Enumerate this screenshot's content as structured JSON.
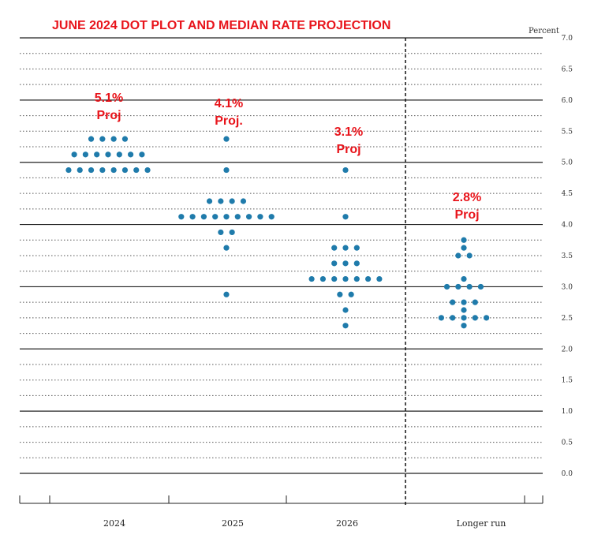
{
  "chart_data": {
    "type": "scatter",
    "title": "JUNE 2024 DOT PLOT AND MEDIAN RATE PROJECTION",
    "ylabel": "Percent",
    "ylim": [
      0,
      7
    ],
    "yticks": [
      "0.0",
      "0.5",
      "1.0",
      "1.5",
      "2.0",
      "2.5",
      "3.0",
      "3.5",
      "4.0",
      "4.5",
      "5.0",
      "5.5",
      "6.0",
      "6.5",
      "7.0"
    ],
    "grid": true,
    "categories": [
      "2024",
      "2025",
      "2026",
      "Longer run"
    ],
    "dot_color": "#1f7bab",
    "annotation_color": "#e8141b",
    "columns": [
      {
        "category": "2024",
        "rows": [
          {
            "rate": 5.375,
            "count": 4
          },
          {
            "rate": 5.125,
            "count": 7
          },
          {
            "rate": 4.875,
            "count": 8
          }
        ],
        "annotation": {
          "value": "5.1%",
          "label": "Proj"
        }
      },
      {
        "category": "2025",
        "rows": [
          {
            "rate": 5.375,
            "count": 1
          },
          {
            "rate": 4.875,
            "count": 1
          },
          {
            "rate": 4.375,
            "count": 4
          },
          {
            "rate": 4.125,
            "count": 9
          },
          {
            "rate": 3.875,
            "count": 2
          },
          {
            "rate": 3.625,
            "count": 1
          },
          {
            "rate": 2.875,
            "count": 1
          }
        ],
        "annotation": {
          "value": "4.1%",
          "label": "Proj."
        }
      },
      {
        "category": "2026",
        "rows": [
          {
            "rate": 4.875,
            "count": 1
          },
          {
            "rate": 4.125,
            "count": 1
          },
          {
            "rate": 3.625,
            "count": 3
          },
          {
            "rate": 3.375,
            "count": 3
          },
          {
            "rate": 3.125,
            "count": 7
          },
          {
            "rate": 2.875,
            "count": 2
          },
          {
            "rate": 2.625,
            "count": 1
          },
          {
            "rate": 2.375,
            "count": 1
          }
        ],
        "annotation": {
          "value": "3.1%",
          "label": "Proj"
        }
      },
      {
        "category": "Longer run",
        "rows": [
          {
            "rate": 3.75,
            "count": 1
          },
          {
            "rate": 3.625,
            "count": 1
          },
          {
            "rate": 3.5,
            "count": 2
          },
          {
            "rate": 3.125,
            "count": 1
          },
          {
            "rate": 3.0,
            "count": 4
          },
          {
            "rate": 2.75,
            "count": 3
          },
          {
            "rate": 2.625,
            "count": 1
          },
          {
            "rate": 2.5,
            "count": 5
          },
          {
            "rate": 2.375,
            "count": 1
          }
        ],
        "annotation": {
          "value": "2.8%",
          "label": "Proj"
        }
      }
    ]
  }
}
